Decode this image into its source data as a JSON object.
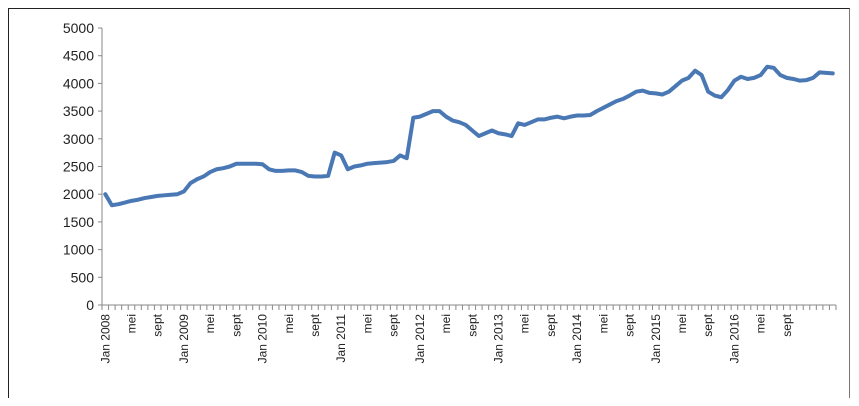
{
  "chart_data": {
    "type": "line",
    "title": "",
    "xlabel": "",
    "ylabel": "",
    "ylim": [
      0,
      5000
    ],
    "yticks": [
      0,
      500,
      1000,
      1500,
      2000,
      2500,
      3000,
      3500,
      4000,
      4500,
      5000
    ],
    "grid": false,
    "legend": "none",
    "line_color": "#4a78b5",
    "x_labels": [
      "Jan 2008",
      "mei",
      "sept",
      "Jan 2009",
      "mei",
      "sept",
      "Jan 2010",
      "mei",
      "sept",
      "Jan 2011",
      "mei",
      "sept",
      "Jan 2012",
      "mei",
      "sept",
      "Jan 2013",
      "mei",
      "sept",
      "Jan 2014",
      "mei",
      "sept",
      "Jan 2015",
      "mei",
      "sept",
      "Jan 2016",
      "mei",
      "sept"
    ],
    "series": [
      {
        "values": [
          2000,
          1800,
          1820,
          1850,
          1880,
          1900,
          1930,
          1950,
          1970,
          1980,
          1990,
          2000,
          2050,
          2200,
          2270,
          2320,
          2400,
          2450,
          2470,
          2500,
          2550,
          2550,
          2550,
          2550,
          2540,
          2450,
          2420,
          2420,
          2430,
          2430,
          2400,
          2330,
          2320,
          2320,
          2330,
          2750,
          2700,
          2450,
          2500,
          2520,
          2550,
          2560,
          2570,
          2580,
          2600,
          2700,
          2650,
          3380,
          3400,
          3450,
          3500,
          3500,
          3400,
          3330,
          3300,
          3250,
          3150,
          3050,
          3100,
          3150,
          3100,
          3080,
          3050,
          3280,
          3250,
          3300,
          3350,
          3350,
          3380,
          3400,
          3370,
          3400,
          3420,
          3420,
          3430,
          3500,
          3560,
          3620,
          3680,
          3720,
          3780,
          3850,
          3870,
          3830,
          3820,
          3800,
          3850,
          3950,
          4050,
          4100,
          4230,
          4150,
          3850,
          3780,
          3750,
          3880,
          4050,
          4120,
          4080,
          4100,
          4150,
          4300,
          4280,
          4150,
          4100,
          4080,
          4050,
          4060,
          4100,
          4200,
          4190,
          4180
        ]
      }
    ]
  }
}
